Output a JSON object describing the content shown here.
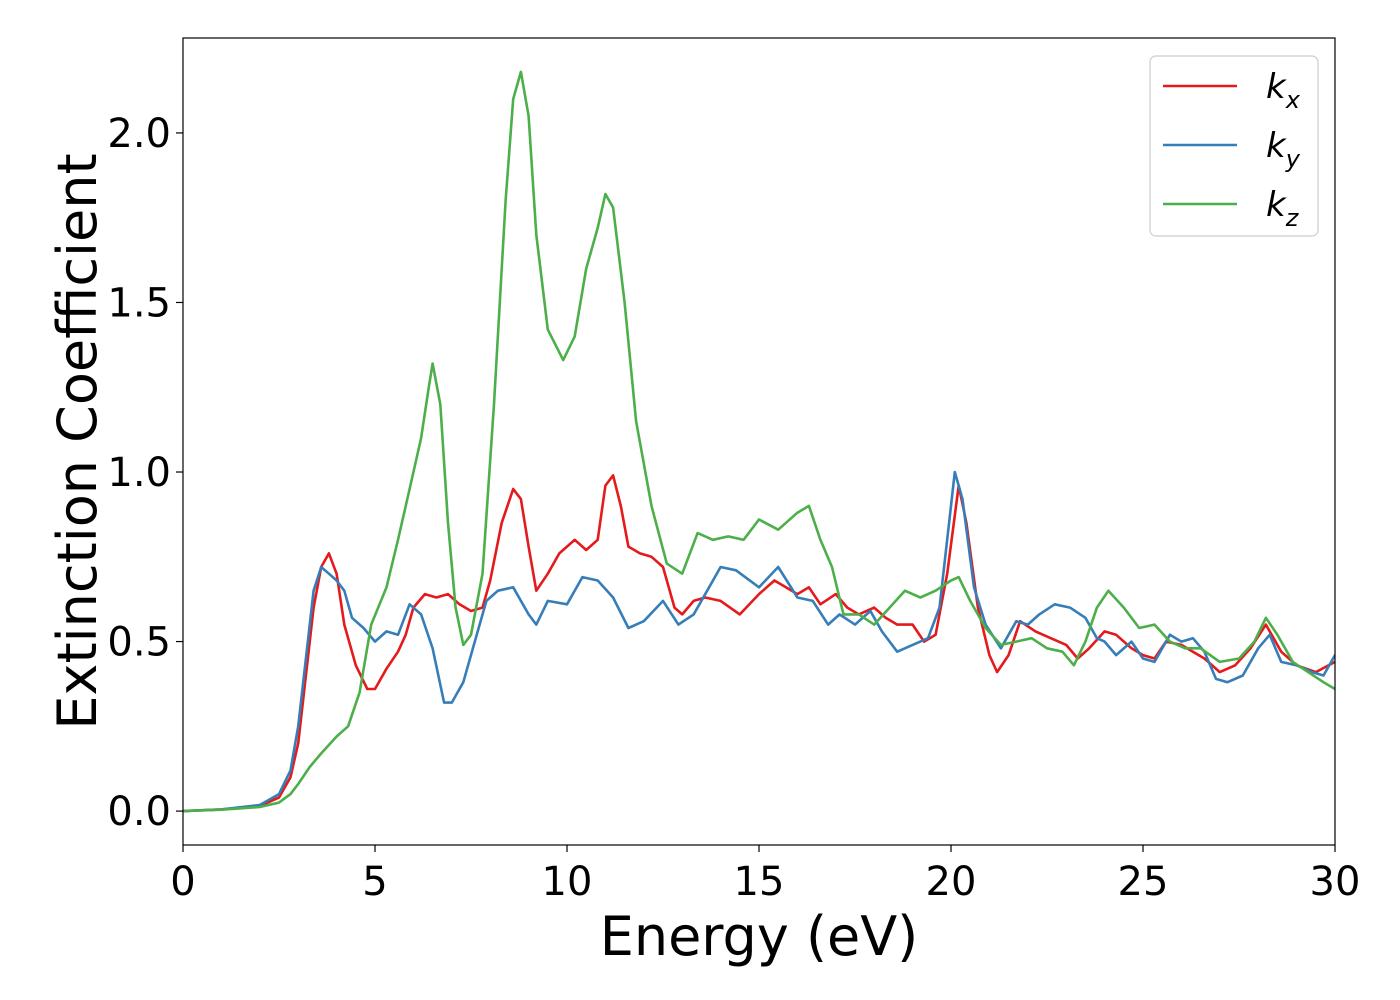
{
  "chart_data": {
    "type": "line",
    "xlabel": "Energy (eV)",
    "ylabel": "Extinction Coefficient",
    "xlim": [
      0,
      30
    ],
    "ylim": [
      -0.1,
      2.28
    ],
    "xticks": [
      0,
      5,
      10,
      15,
      20,
      25,
      30
    ],
    "xtick_labels": [
      "0",
      "5",
      "10",
      "15",
      "20",
      "25",
      "30"
    ],
    "yticks": [
      0.0,
      0.5,
      1.0,
      1.5,
      2.0
    ],
    "ytick_labels": [
      "0.0",
      "0.5",
      "1.0",
      "1.5",
      "2.0"
    ],
    "grid": false,
    "legend_position": "top-right",
    "series": [
      {
        "name": "k",
        "subscript": "x",
        "color": "#e41a1c",
        "points": [
          [
            0,
            0
          ],
          [
            1,
            0.005
          ],
          [
            2,
            0.015
          ],
          [
            2.5,
            0.04
          ],
          [
            2.8,
            0.1
          ],
          [
            3,
            0.2
          ],
          [
            3.2,
            0.4
          ],
          [
            3.4,
            0.6
          ],
          [
            3.6,
            0.72
          ],
          [
            3.8,
            0.76
          ],
          [
            4,
            0.7
          ],
          [
            4.2,
            0.55
          ],
          [
            4.5,
            0.43
          ],
          [
            4.8,
            0.36
          ],
          [
            5,
            0.36
          ],
          [
            5.3,
            0.42
          ],
          [
            5.6,
            0.47
          ],
          [
            5.8,
            0.52
          ],
          [
            6,
            0.6
          ],
          [
            6.3,
            0.64
          ],
          [
            6.6,
            0.63
          ],
          [
            6.9,
            0.64
          ],
          [
            7.2,
            0.61
          ],
          [
            7.5,
            0.59
          ],
          [
            7.8,
            0.6
          ],
          [
            8,
            0.68
          ],
          [
            8.3,
            0.85
          ],
          [
            8.6,
            0.95
          ],
          [
            8.8,
            0.92
          ],
          [
            9,
            0.78
          ],
          [
            9.2,
            0.65
          ],
          [
            9.5,
            0.7
          ],
          [
            9.8,
            0.76
          ],
          [
            10.2,
            0.8
          ],
          [
            10.5,
            0.77
          ],
          [
            10.8,
            0.8
          ],
          [
            11,
            0.96
          ],
          [
            11.2,
            0.99
          ],
          [
            11.4,
            0.9
          ],
          [
            11.6,
            0.78
          ],
          [
            11.9,
            0.76
          ],
          [
            12.2,
            0.75
          ],
          [
            12.5,
            0.72
          ],
          [
            12.8,
            0.6
          ],
          [
            13,
            0.58
          ],
          [
            13.3,
            0.62
          ],
          [
            13.6,
            0.63
          ],
          [
            14,
            0.62
          ],
          [
            14.5,
            0.58
          ],
          [
            15,
            0.64
          ],
          [
            15.4,
            0.68
          ],
          [
            15.7,
            0.66
          ],
          [
            16,
            0.64
          ],
          [
            16.3,
            0.66
          ],
          [
            16.6,
            0.61
          ],
          [
            17,
            0.64
          ],
          [
            17.3,
            0.6
          ],
          [
            17.6,
            0.58
          ],
          [
            18,
            0.6
          ],
          [
            18.3,
            0.57
          ],
          [
            18.6,
            0.55
          ],
          [
            19,
            0.55
          ],
          [
            19.3,
            0.5
          ],
          [
            19.6,
            0.52
          ],
          [
            19.9,
            0.7
          ],
          [
            20.2,
            0.96
          ],
          [
            20.4,
            0.85
          ],
          [
            20.7,
            0.6
          ],
          [
            21,
            0.46
          ],
          [
            21.2,
            0.41
          ],
          [
            21.5,
            0.46
          ],
          [
            21.8,
            0.56
          ],
          [
            22.2,
            0.53
          ],
          [
            22.6,
            0.51
          ],
          [
            23,
            0.49
          ],
          [
            23.3,
            0.45
          ],
          [
            23.6,
            0.48
          ],
          [
            24,
            0.53
          ],
          [
            24.3,
            0.52
          ],
          [
            24.7,
            0.48
          ],
          [
            25,
            0.46
          ],
          [
            25.3,
            0.45
          ],
          [
            25.6,
            0.5
          ],
          [
            26,
            0.49
          ],
          [
            26.3,
            0.47
          ],
          [
            26.6,
            0.45
          ],
          [
            27,
            0.41
          ],
          [
            27.4,
            0.43
          ],
          [
            27.8,
            0.48
          ],
          [
            28.2,
            0.55
          ],
          [
            28.6,
            0.47
          ],
          [
            29,
            0.43
          ],
          [
            29.5,
            0.41
          ],
          [
            30,
            0.44
          ]
        ]
      },
      {
        "name": "k",
        "subscript": "y",
        "color": "#377eb8",
        "points": [
          [
            0,
            0
          ],
          [
            1,
            0.005
          ],
          [
            2,
            0.018
          ],
          [
            2.5,
            0.05
          ],
          [
            2.8,
            0.12
          ],
          [
            3,
            0.25
          ],
          [
            3.2,
            0.45
          ],
          [
            3.4,
            0.65
          ],
          [
            3.6,
            0.72
          ],
          [
            3.8,
            0.7
          ],
          [
            4,
            0.68
          ],
          [
            4.2,
            0.65
          ],
          [
            4.4,
            0.57
          ],
          [
            4.7,
            0.54
          ],
          [
            5,
            0.5
          ],
          [
            5.3,
            0.53
          ],
          [
            5.6,
            0.52
          ],
          [
            5.9,
            0.61
          ],
          [
            6.2,
            0.58
          ],
          [
            6.5,
            0.48
          ],
          [
            6.8,
            0.32
          ],
          [
            7,
            0.32
          ],
          [
            7.3,
            0.38
          ],
          [
            7.6,
            0.5
          ],
          [
            7.9,
            0.62
          ],
          [
            8.2,
            0.65
          ],
          [
            8.6,
            0.66
          ],
          [
            9,
            0.58
          ],
          [
            9.2,
            0.55
          ],
          [
            9.5,
            0.62
          ],
          [
            10,
            0.61
          ],
          [
            10.4,
            0.69
          ],
          [
            10.8,
            0.68
          ],
          [
            11.2,
            0.63
          ],
          [
            11.6,
            0.54
          ],
          [
            12,
            0.56
          ],
          [
            12.5,
            0.62
          ],
          [
            12.9,
            0.55
          ],
          [
            13.3,
            0.58
          ],
          [
            13.7,
            0.66
          ],
          [
            14,
            0.72
          ],
          [
            14.4,
            0.71
          ],
          [
            15,
            0.66
          ],
          [
            15.5,
            0.72
          ],
          [
            16,
            0.63
          ],
          [
            16.4,
            0.62
          ],
          [
            16.8,
            0.55
          ],
          [
            17.1,
            0.58
          ],
          [
            17.5,
            0.55
          ],
          [
            17.9,
            0.59
          ],
          [
            18.2,
            0.53
          ],
          [
            18.6,
            0.47
          ],
          [
            19,
            0.49
          ],
          [
            19.4,
            0.51
          ],
          [
            19.7,
            0.6
          ],
          [
            20,
            0.9
          ],
          [
            20.1,
            1.0
          ],
          [
            20.3,
            0.92
          ],
          [
            20.6,
            0.66
          ],
          [
            20.9,
            0.55
          ],
          [
            21.3,
            0.48
          ],
          [
            21.7,
            0.56
          ],
          [
            22,
            0.55
          ],
          [
            22.3,
            0.58
          ],
          [
            22.7,
            0.61
          ],
          [
            23.1,
            0.6
          ],
          [
            23.5,
            0.57
          ],
          [
            23.8,
            0.51
          ],
          [
            24,
            0.5
          ],
          [
            24.3,
            0.46
          ],
          [
            24.7,
            0.5
          ],
          [
            25,
            0.45
          ],
          [
            25.3,
            0.44
          ],
          [
            25.7,
            0.52
          ],
          [
            26,
            0.5
          ],
          [
            26.3,
            0.51
          ],
          [
            26.6,
            0.47
          ],
          [
            26.9,
            0.39
          ],
          [
            27.2,
            0.38
          ],
          [
            27.6,
            0.4
          ],
          [
            28,
            0.48
          ],
          [
            28.3,
            0.52
          ],
          [
            28.6,
            0.44
          ],
          [
            29,
            0.43
          ],
          [
            29.4,
            0.41
          ],
          [
            29.7,
            0.4
          ],
          [
            30,
            0.46
          ]
        ]
      },
      {
        "name": "k",
        "subscript": "z",
        "color": "#4daf4a",
        "points": [
          [
            0,
            0
          ],
          [
            1,
            0.004
          ],
          [
            2,
            0.012
          ],
          [
            2.5,
            0.025
          ],
          [
            2.8,
            0.05
          ],
          [
            3,
            0.08
          ],
          [
            3.3,
            0.13
          ],
          [
            3.6,
            0.17
          ],
          [
            4,
            0.22
          ],
          [
            4.3,
            0.25
          ],
          [
            4.6,
            0.35
          ],
          [
            4.9,
            0.55
          ],
          [
            5.3,
            0.66
          ],
          [
            5.6,
            0.8
          ],
          [
            5.9,
            0.95
          ],
          [
            6.2,
            1.1
          ],
          [
            6.4,
            1.25
          ],
          [
            6.5,
            1.32
          ],
          [
            6.7,
            1.2
          ],
          [
            6.9,
            0.85
          ],
          [
            7.1,
            0.6
          ],
          [
            7.3,
            0.49
          ],
          [
            7.5,
            0.52
          ],
          [
            7.8,
            0.7
          ],
          [
            8.1,
            1.2
          ],
          [
            8.4,
            1.8
          ],
          [
            8.6,
            2.1
          ],
          [
            8.8,
            2.18
          ],
          [
            9,
            2.05
          ],
          [
            9.2,
            1.7
          ],
          [
            9.5,
            1.42
          ],
          [
            9.9,
            1.33
          ],
          [
            10.2,
            1.4
          ],
          [
            10.5,
            1.6
          ],
          [
            10.8,
            1.72
          ],
          [
            11,
            1.82
          ],
          [
            11.2,
            1.78
          ],
          [
            11.5,
            1.5
          ],
          [
            11.8,
            1.15
          ],
          [
            12.2,
            0.9
          ],
          [
            12.6,
            0.73
          ],
          [
            13,
            0.7
          ],
          [
            13.4,
            0.82
          ],
          [
            13.8,
            0.8
          ],
          [
            14.2,
            0.81
          ],
          [
            14.6,
            0.8
          ],
          [
            15,
            0.86
          ],
          [
            15.5,
            0.83
          ],
          [
            16,
            0.88
          ],
          [
            16.3,
            0.9
          ],
          [
            16.6,
            0.8
          ],
          [
            16.9,
            0.72
          ],
          [
            17.2,
            0.58
          ],
          [
            17.6,
            0.58
          ],
          [
            18,
            0.55
          ],
          [
            18.4,
            0.6
          ],
          [
            18.8,
            0.65
          ],
          [
            19.2,
            0.63
          ],
          [
            19.6,
            0.65
          ],
          [
            20,
            0.68
          ],
          [
            20.2,
            0.69
          ],
          [
            20.5,
            0.62
          ],
          [
            20.9,
            0.54
          ],
          [
            21.3,
            0.49
          ],
          [
            21.7,
            0.5
          ],
          [
            22.1,
            0.51
          ],
          [
            22.5,
            0.48
          ],
          [
            22.9,
            0.47
          ],
          [
            23.2,
            0.43
          ],
          [
            23.5,
            0.5
          ],
          [
            23.8,
            0.6
          ],
          [
            24.1,
            0.65
          ],
          [
            24.5,
            0.6
          ],
          [
            24.9,
            0.54
          ],
          [
            25.3,
            0.55
          ],
          [
            25.7,
            0.5
          ],
          [
            26.1,
            0.48
          ],
          [
            26.5,
            0.48
          ],
          [
            27,
            0.44
          ],
          [
            27.5,
            0.45
          ],
          [
            27.9,
            0.5
          ],
          [
            28.2,
            0.57
          ],
          [
            28.5,
            0.52
          ],
          [
            28.9,
            0.44
          ],
          [
            29.3,
            0.41
          ],
          [
            29.7,
            0.38
          ],
          [
            30,
            0.36
          ]
        ]
      }
    ]
  }
}
